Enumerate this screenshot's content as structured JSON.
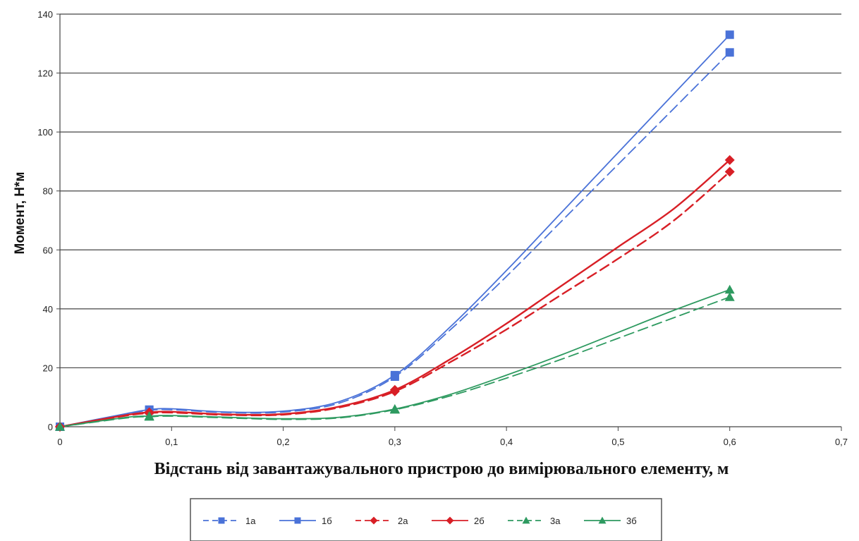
{
  "chart_data": {
    "type": "line",
    "title": "",
    "xlabel": "Відстань від завантажувального пристрою до вимірювального елементу, м",
    "ylabel": "Момент, Н*м",
    "xlim": [
      0,
      0.7
    ],
    "ylim": [
      0,
      140
    ],
    "x_ticks": [
      0,
      0.1,
      0.2,
      0.3,
      0.4,
      0.5,
      0.6,
      0.7
    ],
    "x_tick_labels": [
      "0",
      "0,1",
      "0,2",
      "0,3",
      "0,4",
      "0,5",
      "0,6",
      "0,7"
    ],
    "y_ticks": [
      0,
      20,
      40,
      60,
      80,
      100,
      120,
      140
    ],
    "y_tick_labels": [
      "0",
      "20",
      "40",
      "60",
      "80",
      "100",
      "120",
      "140"
    ],
    "grid": "horizontal",
    "legend_position": "bottom",
    "markers_x": [
      0,
      0.08,
      0.3,
      0.6
    ],
    "series": [
      {
        "name": "1а",
        "color": "#4a72d8",
        "dash": true,
        "marker": "square",
        "x": [
          0,
          0.06,
          0.08,
          0.1,
          0.15,
          0.2,
          0.25,
          0.3,
          0.35,
          0.4,
          0.45,
          0.5,
          0.55,
          0.6
        ],
        "y": [
          0,
          4.3,
          5.6,
          5.8,
          4.8,
          5.0,
          8.0,
          17.0,
          33.0,
          51.0,
          70.0,
          89.0,
          108.0,
          127.0
        ]
      },
      {
        "name": "1б",
        "color": "#4a72d8",
        "dash": false,
        "marker": "square",
        "x": [
          0,
          0.06,
          0.08,
          0.1,
          0.15,
          0.2,
          0.25,
          0.3,
          0.35,
          0.4,
          0.45,
          0.5,
          0.55,
          0.6
        ],
        "y": [
          0,
          4.5,
          5.8,
          6.1,
          5.0,
          5.3,
          8.5,
          17.5,
          34.0,
          53.0,
          73.0,
          93.0,
          113.0,
          133.0
        ]
      },
      {
        "name": "2а",
        "color": "#d81f26",
        "dash": true,
        "marker": "diamond",
        "x": [
          0,
          0.06,
          0.08,
          0.1,
          0.15,
          0.2,
          0.25,
          0.3,
          0.35,
          0.4,
          0.45,
          0.5,
          0.55,
          0.6
        ],
        "y": [
          0,
          3.8,
          4.6,
          4.8,
          4.0,
          4.1,
          6.5,
          12.0,
          22.0,
          33.0,
          45.0,
          57.0,
          70.0,
          86.5
        ]
      },
      {
        "name": "2б",
        "color": "#d81f26",
        "dash": false,
        "marker": "diamond",
        "x": [
          0,
          0.06,
          0.08,
          0.1,
          0.15,
          0.2,
          0.25,
          0.3,
          0.35,
          0.4,
          0.45,
          0.5,
          0.55,
          0.6
        ],
        "y": [
          0,
          4.0,
          4.9,
          5.1,
          4.2,
          4.3,
          6.8,
          12.5,
          23.0,
          35.0,
          48.0,
          61.0,
          74.0,
          90.5
        ]
      },
      {
        "name": "3а",
        "color": "#2e9a60",
        "dash": true,
        "marker": "triangle",
        "x": [
          0,
          0.06,
          0.08,
          0.1,
          0.15,
          0.2,
          0.25,
          0.3,
          0.35,
          0.4,
          0.45,
          0.5,
          0.55,
          0.6
        ],
        "y": [
          0,
          3.0,
          3.4,
          3.6,
          3.0,
          2.5,
          3.0,
          5.8,
          10.5,
          16.5,
          23.0,
          30.0,
          37.0,
          44.0
        ]
      },
      {
        "name": "3б",
        "color": "#2e9a60",
        "dash": false,
        "marker": "triangle",
        "x": [
          0,
          0.06,
          0.08,
          0.1,
          0.15,
          0.2,
          0.25,
          0.3,
          0.35,
          0.4,
          0.45,
          0.5,
          0.55,
          0.6
        ],
        "y": [
          0,
          3.2,
          3.6,
          3.8,
          3.2,
          2.7,
          3.2,
          6.0,
          11.0,
          17.5,
          24.5,
          32.0,
          39.5,
          46.5
        ]
      }
    ]
  }
}
